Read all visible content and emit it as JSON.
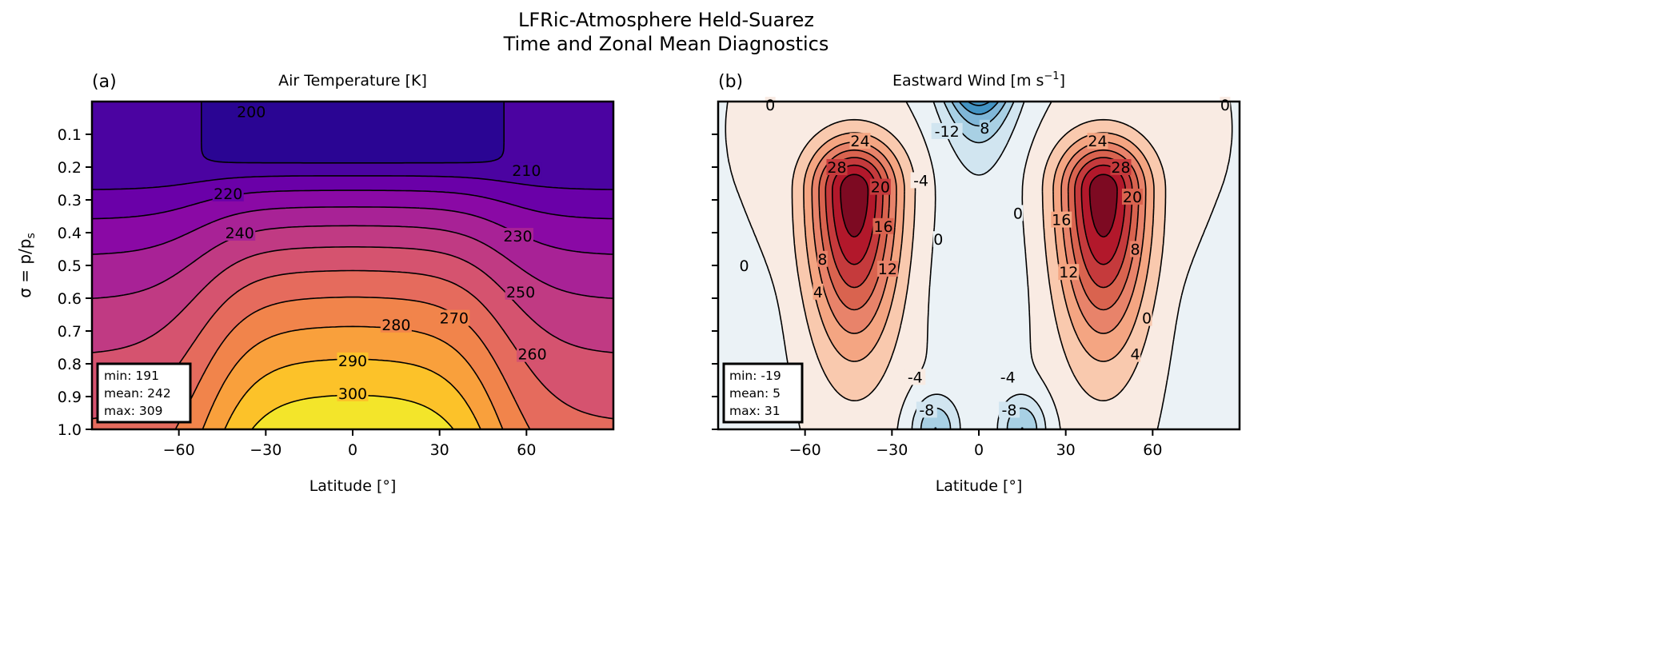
{
  "figure": {
    "title_line1": "LFRic-Atmosphere Held-Suarez",
    "title_line2": "Time and Zonal Mean Diagnostics"
  },
  "chart_data": [
    {
      "type": "contour",
      "panel_label": "(a)",
      "title": "Air Temperature [K]",
      "xlabel": "Latitude [°]",
      "ylabel": "σ = p/p",
      "ylabel_sub": "s",
      "xlim": [
        -90,
        90
      ],
      "ylim": [
        1.0,
        0.0
      ],
      "xticks": [
        -60,
        -30,
        0,
        30,
        60
      ],
      "xtick_labels": [
        "−60",
        "−30",
        "0",
        "30",
        "60"
      ],
      "yticks": [
        0.1,
        0.2,
        0.3,
        0.4,
        0.5,
        0.6,
        0.7,
        0.8,
        0.9,
        1.0
      ],
      "ytick_labels": [
        "0.1",
        "0.2",
        "0.3",
        "0.4",
        "0.5",
        "0.6",
        "0.7",
        "0.8",
        "0.9",
        "1.0"
      ],
      "colormap": "plasma",
      "levels": [
        190,
        200,
        210,
        220,
        230,
        240,
        250,
        260,
        270,
        280,
        290,
        300,
        310
      ],
      "band_colors": [
        "#2a0593",
        "#4b03a1",
        "#6a00a8",
        "#8a09a5",
        "#a82296",
        "#c03a83",
        "#d5536f",
        "#e56b5d",
        "#f1844b",
        "#f9a03c",
        "#fcc229",
        "#f3e52a"
      ],
      "contour_labels": [
        "200",
        "210",
        "220",
        "230",
        "240",
        "250",
        "260",
        "270",
        "280",
        "290",
        "300"
      ],
      "stats": {
        "min": "min: 191",
        "mean": "mean: 242",
        "max": "max: 309"
      }
    },
    {
      "type": "contour",
      "panel_label": "(b)",
      "title": "Eastward Wind [m s",
      "title_sup": "−1",
      "title_end": "]",
      "xlabel": "Latitude [°]",
      "xlim": [
        -90,
        90
      ],
      "ylim": [
        1.0,
        0.0
      ],
      "xticks": [
        -60,
        -30,
        0,
        30,
        60
      ],
      "xtick_labels": [
        "−60",
        "−30",
        "0",
        "30",
        "60"
      ],
      "yticks": [
        0.1,
        0.2,
        0.3,
        0.4,
        0.5,
        0.6,
        0.7,
        0.8,
        0.9,
        1.0
      ],
      "colormap": "RdBu_r",
      "negative_contours": "dashed",
      "levels": [
        -20,
        -16,
        -12,
        -8,
        -4,
        0,
        4,
        8,
        12,
        16,
        20,
        24,
        28,
        32
      ],
      "band_colors": [
        "#4393c3",
        "#80b7d8",
        "#a8d0e4",
        "#d1e5f0",
        "#ebf2f6",
        "#f9ebe3",
        "#f9c9ae",
        "#f4a582",
        "#e8836a",
        "#d9634f",
        "#c53a3c",
        "#b2182b",
        "#7d0a22"
      ],
      "contour_labels": [
        "0",
        "0",
        "-12",
        "8",
        "-4",
        "28",
        "24",
        "20",
        "16",
        "12",
        "8",
        "4",
        "0",
        "0",
        "0",
        "28",
        "24",
        "20",
        "16",
        "12",
        "8",
        "4",
        "0",
        "-4",
        "-8",
        "-4",
        "-8"
      ],
      "stats": {
        "min": "min: -19",
        "mean": "mean: 5",
        "max": "max: 31"
      }
    }
  ]
}
